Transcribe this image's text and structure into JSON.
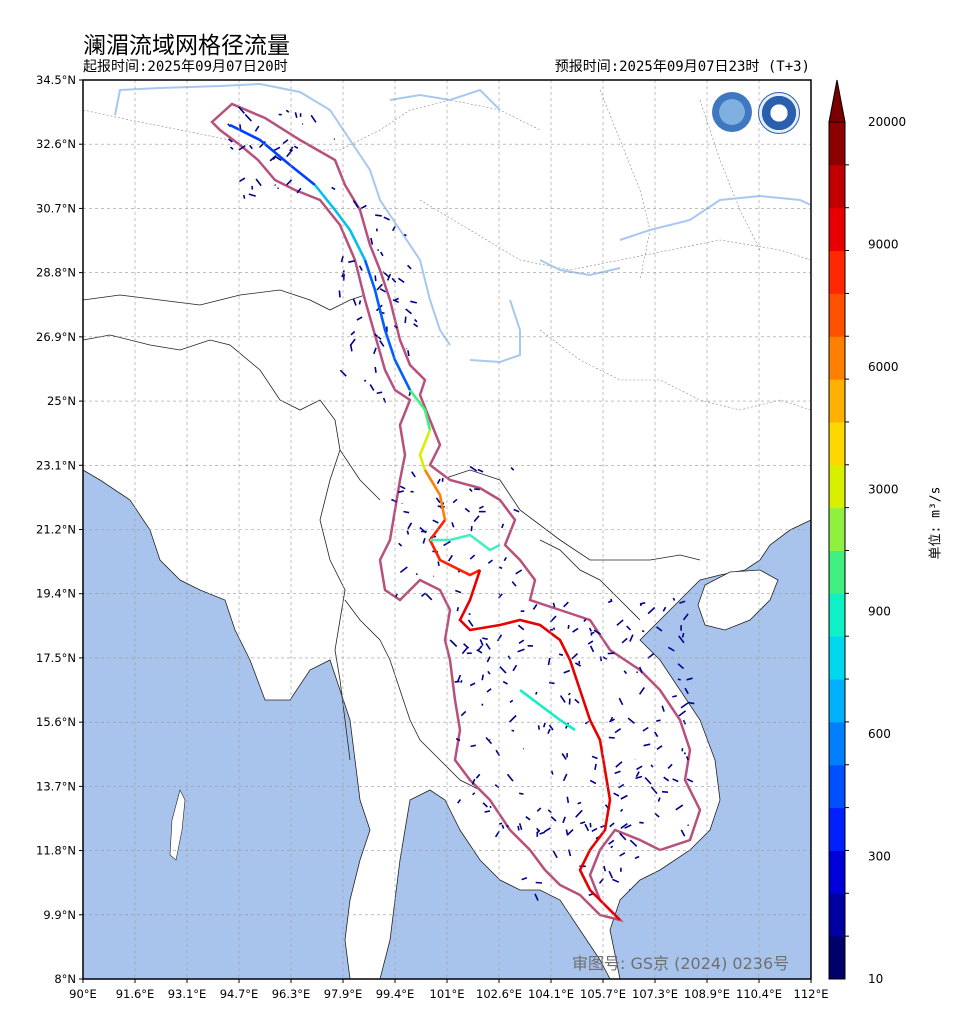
{
  "title": "澜湄流域网格径流量",
  "issue_time": "起报时间:2025年09月07日20时",
  "forecast_time": "预报时间:2025年09月07日23时 (T+3)",
  "lat_ticks": [
    "34.5°N",
    "32.6°N",
    "30.7°N",
    "28.8°N",
    "26.9°N",
    "25°N",
    "23.1°N",
    "21.2°N",
    "19.4°N",
    "17.5°N",
    "15.6°N",
    "13.7°N",
    "11.8°N",
    "9.9°N",
    "8°N"
  ],
  "lon_ticks": [
    "90°E",
    "91.6°E",
    "93.1°E",
    "94.7°E",
    "96.3°E",
    "97.9°E",
    "99.4°E",
    "101°E",
    "102.6°E",
    "104.1°E",
    "105.7°E",
    "107.3°E",
    "108.9°E",
    "110.4°E",
    "112°E"
  ],
  "colorbar": {
    "unit": "单位: m³/s",
    "labels": [
      "20000",
      "9000",
      "6000",
      "3000",
      "900",
      "600",
      "300",
      "10"
    ],
    "colors": [
      "#00006a",
      "#0000a0",
      "#0000d8",
      "#0020ff",
      "#0050ff",
      "#0080ff",
      "#00b0ff",
      "#00d8f0",
      "#10f0c8",
      "#40f080",
      "#90f040",
      "#d8f000",
      "#ffd800",
      "#ffb000",
      "#ff8000",
      "#ff5000",
      "#ff2800",
      "#e80000",
      "#c00000",
      "#8c0000"
    ]
  },
  "watermark": "审图号: GS京 (2024) 0236号",
  "logos": [
    "wmo-logo",
    "cma-logo"
  ]
}
